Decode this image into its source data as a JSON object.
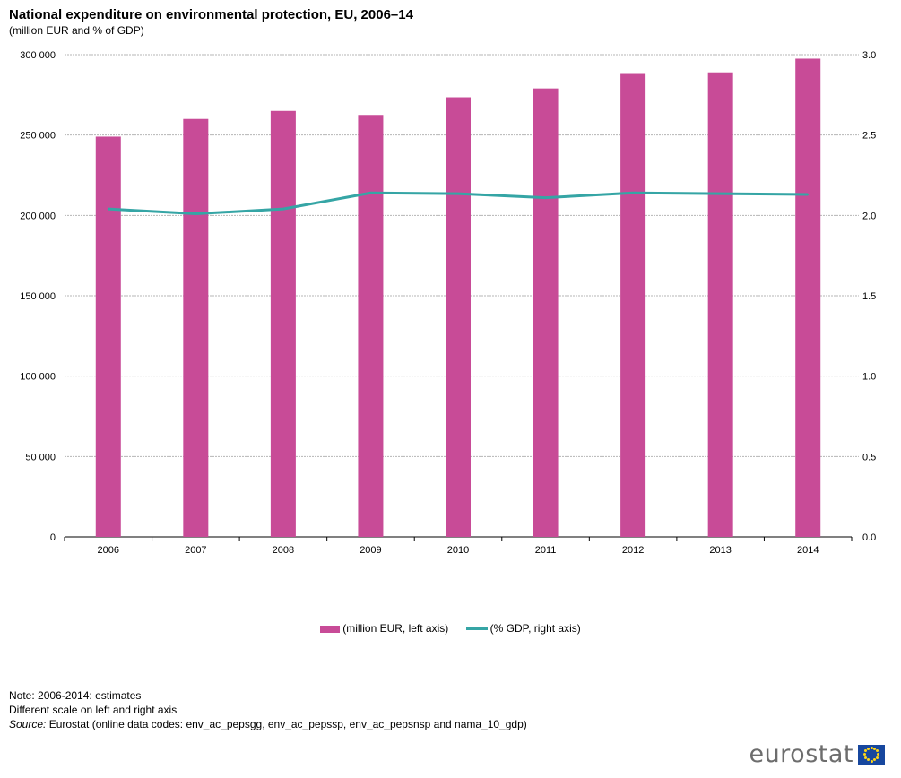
{
  "header": {
    "title": "National expenditure on environmental protection, EU, 2006–14",
    "subtitle": "(million EUR and % of GDP)"
  },
  "chart_data": {
    "type": "bar",
    "categories": [
      "2006",
      "2007",
      "2008",
      "2009",
      "2010",
      "2011",
      "2012",
      "2013",
      "2014"
    ],
    "series": [
      {
        "name": "(million EUR, left axis)",
        "kind": "bar",
        "axis": "left",
        "color": "#c84b97",
        "values": [
          249000,
          260000,
          265000,
          262500,
          273500,
          279000,
          288000,
          289000,
          297500
        ]
      },
      {
        "name": "(% GDP, right axis)",
        "kind": "line",
        "axis": "right",
        "color": "#35a5a5",
        "values": [
          2.04,
          2.01,
          2.04,
          2.14,
          2.135,
          2.11,
          2.14,
          2.135,
          2.13
        ]
      }
    ],
    "left_axis": {
      "min": 0,
      "max": 300000,
      "step": 50000,
      "tick_labels": [
        "0",
        "50 000",
        "100 000",
        "150 000",
        "200 000",
        "250 000",
        "300 000"
      ]
    },
    "right_axis": {
      "min": 0,
      "max": 3.0,
      "step": 0.5,
      "tick_labels": [
        "0.0",
        "0.5",
        "1.0",
        "1.5",
        "2.0",
        "2.5",
        "3.0"
      ]
    },
    "grid": true,
    "legend_position": "bottom-center"
  },
  "legend": {
    "bar_label": "(million EUR, left axis)",
    "line_label": "(% GDP, right axis)"
  },
  "notes": {
    "line1": "Note: 2006-2014: estimates",
    "line2": "Different scale on left and right axis",
    "source_label": "Source:",
    "source_text": " Eurostat (online data codes: env_ac_pepsgg, env_ac_pepssp, env_ac_pepsnsp and nama_10_gdp)"
  },
  "brand": {
    "name": "eurostat"
  }
}
